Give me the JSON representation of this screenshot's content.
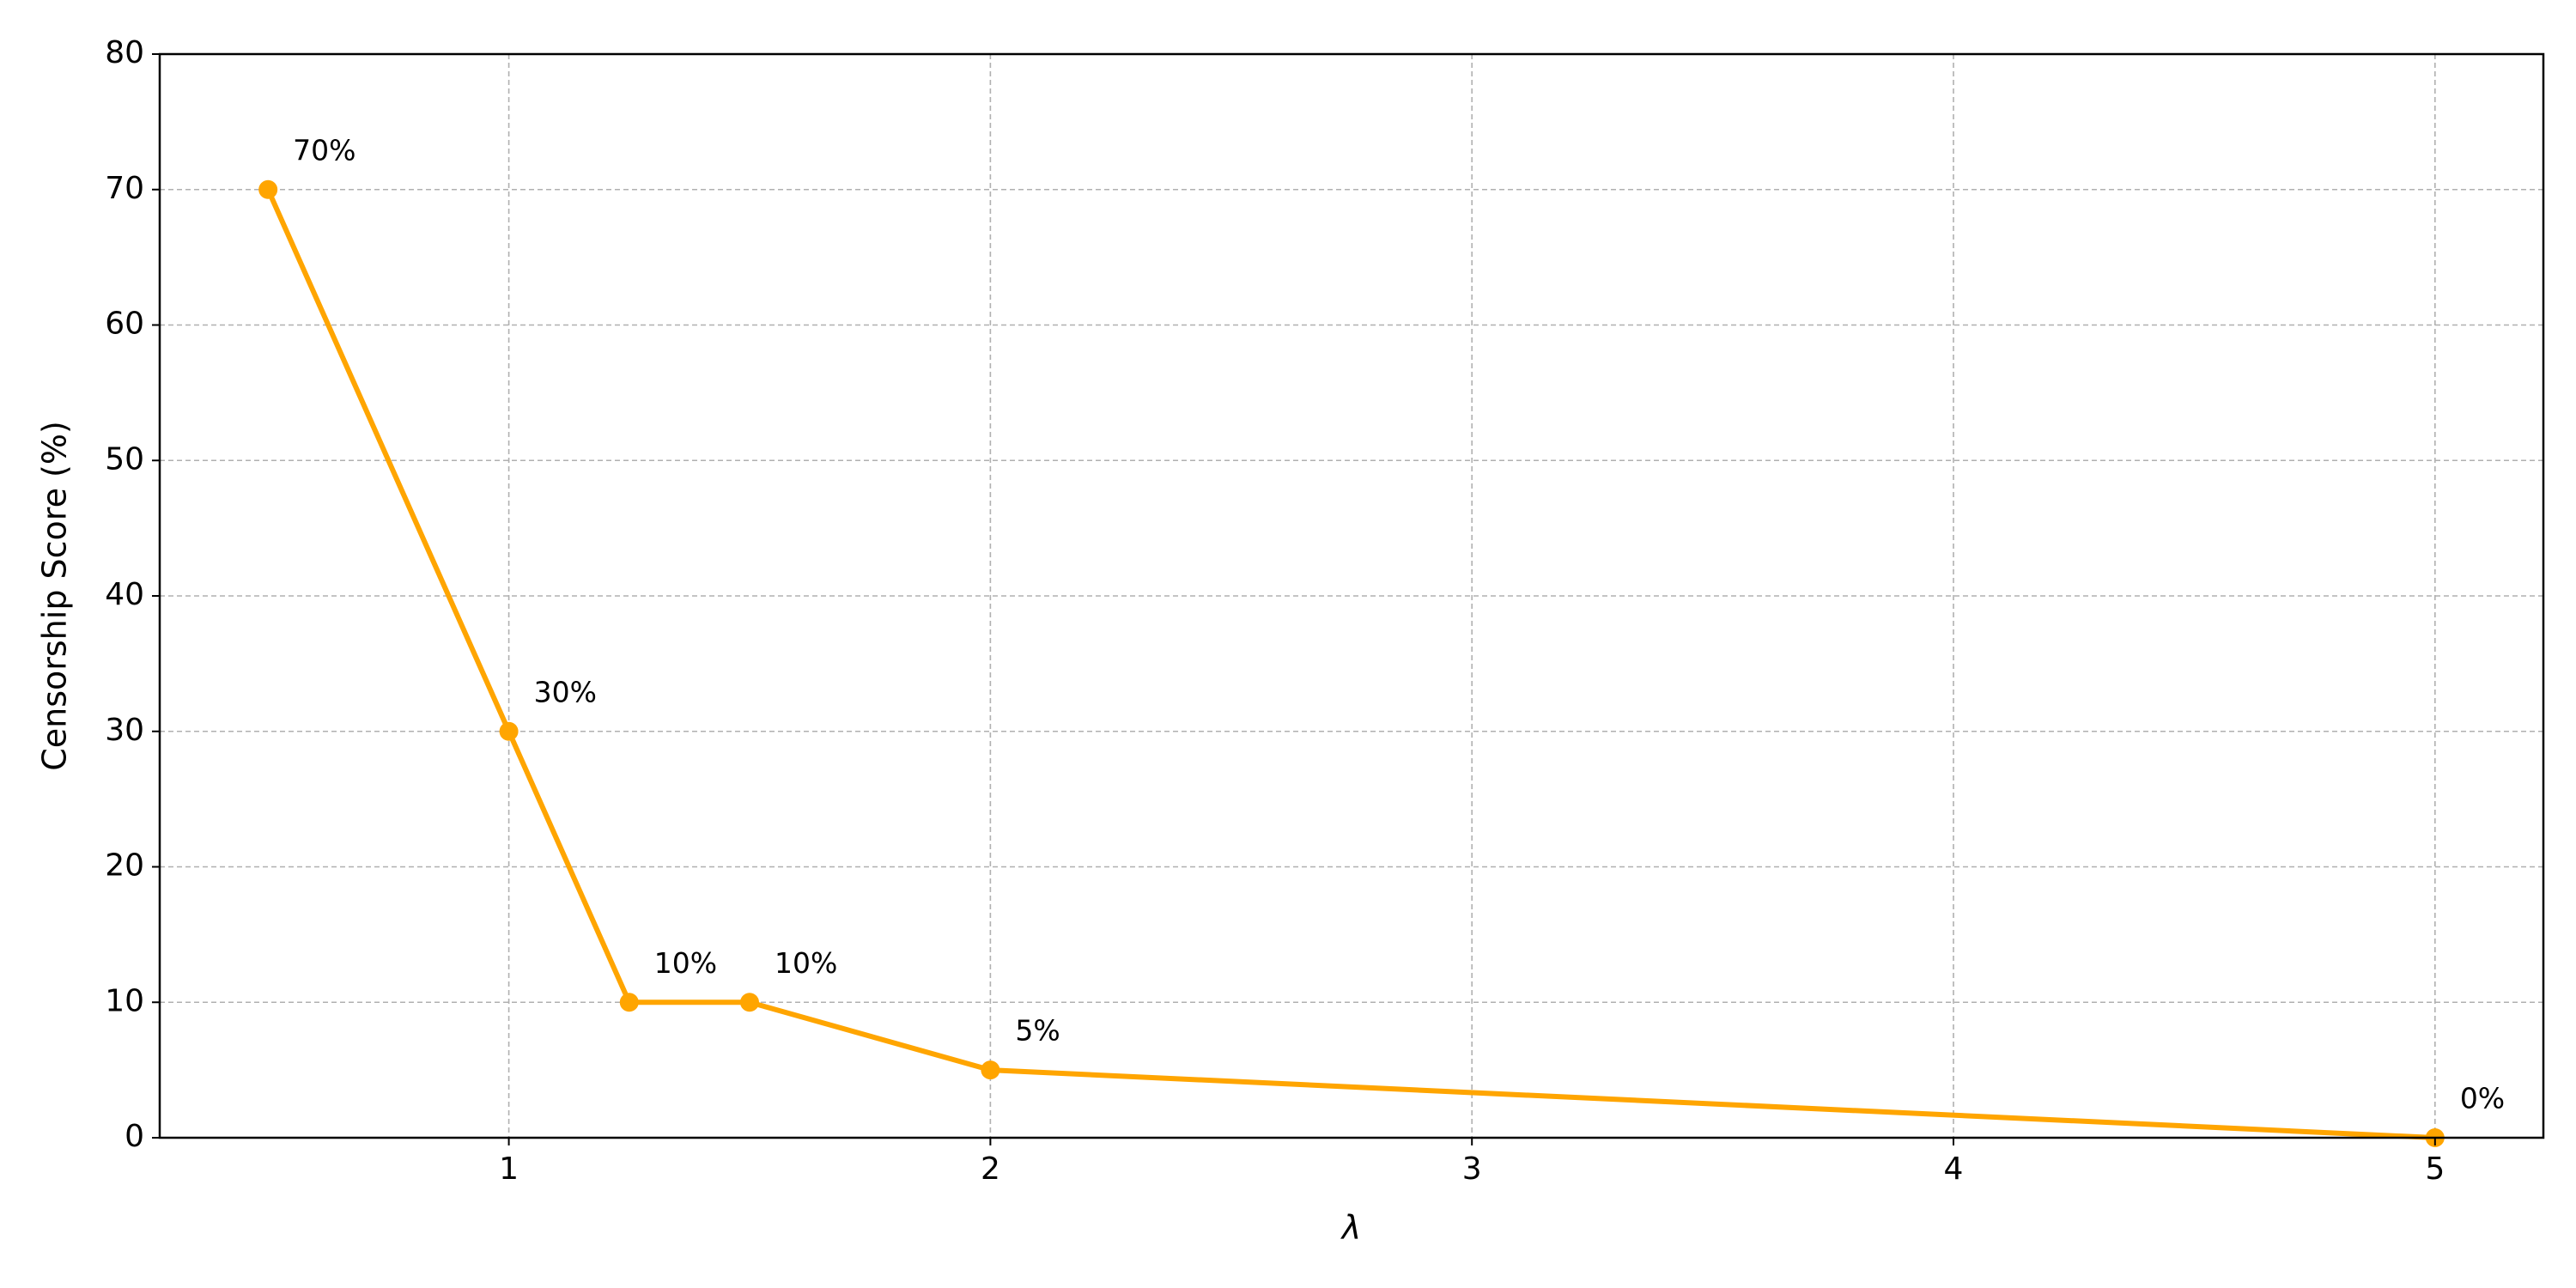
{
  "chart_data": {
    "type": "line",
    "x_label": "λ",
    "y_label": "Censorship Score (%)",
    "x": [
      0.5,
      1,
      1.25,
      1.5,
      2,
      5
    ],
    "series": [
      {
        "color": "#ffa500",
        "values": [
          70,
          30,
          10,
          10,
          5,
          0
        ],
        "value_labels": [
          "70%",
          "30%",
          "10%",
          "10%",
          "5%",
          "0%"
        ]
      }
    ],
    "xlim": [
      0.275,
      5.225
    ],
    "xticks": [
      1,
      2,
      3,
      4,
      5
    ],
    "ylim": [
      0,
      80
    ],
    "yticks": [
      0,
      10,
      20,
      30,
      40,
      50,
      60,
      70,
      80
    ],
    "grid": true
  }
}
